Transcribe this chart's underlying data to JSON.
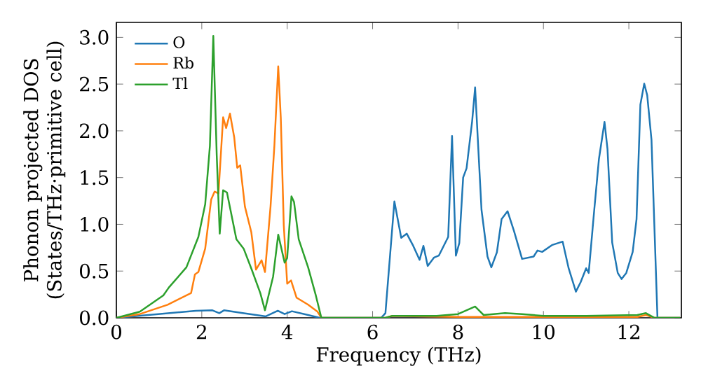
{
  "chart_data": {
    "type": "line",
    "xlabel": "Frequency (THz)",
    "ylabel": "Phonon projected DOS (States/THz·primitive cell)",
    "xlim": [
      0,
      13.23
    ],
    "ylim": [
      0,
      3.16
    ],
    "xticks": [
      0,
      2,
      4,
      6,
      8,
      10,
      12
    ],
    "yticks": [
      {
        "value": 0,
        "label": "0.0"
      },
      {
        "value": 0.5,
        "label": "0.5"
      },
      {
        "value": 1,
        "label": "1.0"
      },
      {
        "value": 1.5,
        "label": "1.5"
      },
      {
        "value": 2,
        "label": "2.0"
      },
      {
        "value": 2.5,
        "label": "2.5"
      },
      {
        "value": 3,
        "label": "3.0"
      }
    ],
    "legend": "top left",
    "grid": false,
    "marker": "none",
    "line_style": "solid",
    "series": [
      {
        "name": "O",
        "color": "#1f77b4",
        "x": [
          0,
          0.98,
          1.86,
          2.25,
          2.41,
          2.52,
          2.96,
          3.5,
          3.78,
          3.94,
          4.11,
          4.49,
          4.76,
          6.2,
          6.3,
          6.51,
          6.67,
          6.8,
          6.94,
          7.1,
          7.19,
          7.29,
          7.44,
          7.55,
          7.77,
          7.86,
          7.95,
          8.03,
          8.12,
          8.2,
          8.33,
          8.4,
          8.55,
          8.69,
          8.78,
          8.91,
          9.02,
          9.16,
          9.31,
          9.5,
          9.77,
          9.86,
          9.97,
          10.21,
          10.45,
          10.59,
          10.76,
          10.87,
          11.0,
          11.06,
          11.19,
          11.3,
          11.43,
          11.5,
          11.61,
          11.74,
          11.83,
          11.94,
          12.09,
          12.18,
          12.27,
          12.36,
          12.43,
          12.53,
          12.67,
          13.2
        ],
        "values": [
          0,
          0.04,
          0.075,
          0.08,
          0.05,
          0.08,
          0.05,
          0.015,
          0.075,
          0.04,
          0.07,
          0.03,
          0,
          0,
          0.05,
          1.245,
          0.855,
          0.9,
          0.78,
          0.62,
          0.77,
          0.555,
          0.645,
          0.665,
          0.865,
          1.945,
          0.665,
          0.8,
          1.5,
          1.6,
          2.1,
          2.465,
          1.155,
          0.655,
          0.54,
          0.7,
          1.055,
          1.14,
          0.93,
          0.63,
          0.655,
          0.72,
          0.705,
          0.78,
          0.815,
          0.53,
          0.28,
          0.38,
          0.53,
          0.48,
          1.155,
          1.7,
          2.095,
          1.805,
          0.805,
          0.48,
          0.415,
          0.48,
          0.705,
          1.055,
          2.28,
          2.505,
          2.38,
          1.905,
          0,
          0
        ]
      },
      {
        "name": "Rb",
        "color": "#ff7f0e",
        "x": [
          0,
          0.55,
          1.2,
          1.75,
          1.84,
          1.92,
          2.08,
          2.22,
          2.3,
          2.39,
          2.5,
          2.57,
          2.66,
          2.76,
          2.83,
          2.9,
          3.01,
          3.16,
          3.27,
          3.4,
          3.48,
          3.61,
          3.7,
          3.79,
          3.85,
          3.92,
          4.0,
          4.09,
          4.22,
          4.49,
          4.71,
          4.8,
          6.3,
          6.45,
          8.0,
          12.2,
          12.4,
          12.6,
          13.2
        ],
        "values": [
          0,
          0.04,
          0.14,
          0.265,
          0.465,
          0.49,
          0.74,
          1.265,
          1.35,
          1.33,
          2.145,
          2.03,
          2.185,
          1.93,
          1.605,
          1.63,
          1.19,
          0.915,
          0.515,
          0.615,
          0.49,
          1.19,
          1.84,
          2.69,
          2.14,
          0.99,
          0.365,
          0.4,
          0.215,
          0.14,
          0.065,
          0,
          0,
          0.02,
          0.01,
          0.01,
          0.03,
          0,
          0
        ]
      },
      {
        "name": "Tl",
        "color": "#2ca02c",
        "x": [
          0,
          0.55,
          1.1,
          1.23,
          1.64,
          1.92,
          2.08,
          2.19,
          2.27,
          2.35,
          2.42,
          2.5,
          2.59,
          2.7,
          2.81,
          2.98,
          3.17,
          3.37,
          3.48,
          3.67,
          3.79,
          3.94,
          4.0,
          4.1,
          4.16,
          4.27,
          4.49,
          4.67,
          4.8,
          6.3,
          6.45,
          7.5,
          8.0,
          8.4,
          8.6,
          9.1,
          9.5,
          10.0,
          11.0,
          12.2,
          12.4,
          12.6,
          13.2
        ],
        "values": [
          0,
          0.065,
          0.24,
          0.325,
          0.54,
          0.865,
          1.215,
          1.84,
          3.015,
          1.74,
          0.9,
          1.365,
          1.34,
          1.09,
          0.84,
          0.74,
          0.515,
          0.265,
          0.08,
          0.44,
          0.89,
          0.59,
          0.64,
          1.3,
          1.24,
          0.84,
          0.54,
          0.24,
          0,
          0,
          0.02,
          0.02,
          0.04,
          0.12,
          0.03,
          0.05,
          0.04,
          0.02,
          0.02,
          0.03,
          0.05,
          0,
          0
        ]
      }
    ]
  }
}
